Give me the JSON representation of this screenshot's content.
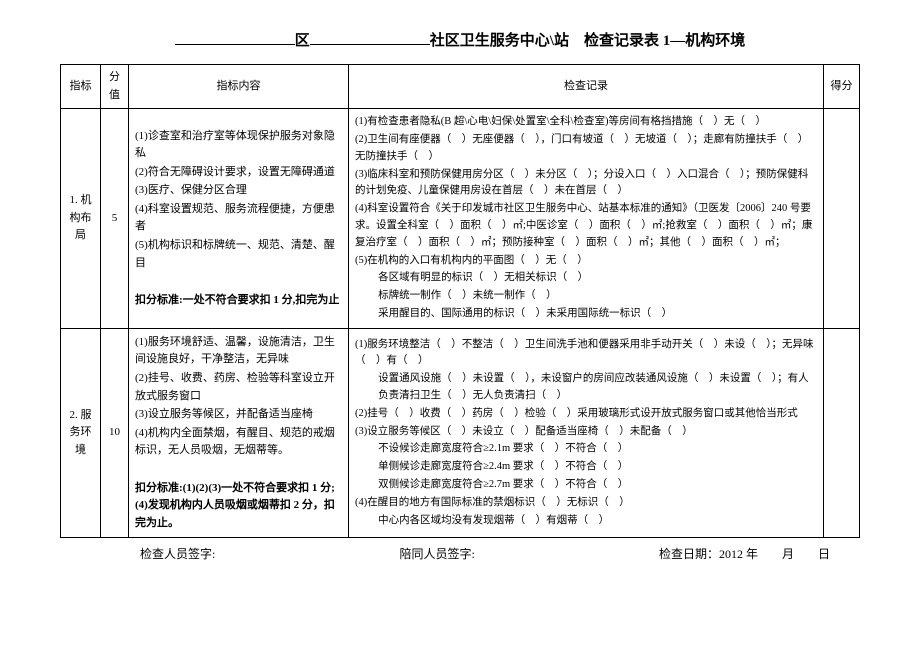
{
  "title": {
    "prefix_blank": "",
    "district_suffix": "区",
    "middle_blank": "",
    "center_text": "社区卫生服务中心\\站　检查记录表 1—机构环境"
  },
  "headers": {
    "indicator": "指标",
    "score": "分值",
    "content": "指标内容",
    "record": "检查记录",
    "got": "得分"
  },
  "rows": [
    {
      "indicator": "1. 机构布局",
      "score": "5",
      "content_lines": [
        "(1)诊查室和治疗室等体现保护服务对象隐私",
        "(2)符合无障碍设计要求，设置无障碍通道",
        "(3)医疗、保健分区合理",
        "(4)科室设置规范、服务流程便捷，方便患者",
        "(5)机构标识和标牌统一、规范、清楚、醒目"
      ],
      "content_rule": "扣分标准:一处不符合要求扣 1 分,扣完为止",
      "record_lines": [
        "(1)有检查患者隐私(B 超\\心电\\妇保\\处置室\\全科\\检查室)等房间有格挡措施（　）无（　）",
        "(2)卫生间有座便器（　）无座便器（　），门口有坡道（　）无坡道（　）；走廊有防撞扶手（　）无防撞扶手（　）",
        "(3)临床科室和预防保健用房分区（　）未分区（　）；分设入口（　）入口混合（　）；预防保健科的计划免疫、儿童保健用房设在首层（　）未在首层（　）",
        "(4)科室设置符合《关于印发城市社区卫生服务中心、站基本标准的通知》（卫医发〔2006〕240 号要求。设置全科室（　）面积（　）㎡;中医诊室（　）面积（　）㎡;抢救室（　）面积（　）㎡；康复治疗室（　）面积（　）㎡；预防接种室（　）面积（　）㎡；其他（　）面积（　）㎡；",
        "(5)在机构的入口有机构内的平面图（　）无（　）",
        "各区域有明显的标识（　）无相关标识（　）",
        "标牌统一制作（　）未统一制作（　）",
        "采用醒目的、国际通用的标识（　）未采用国际统一标识（　）"
      ]
    },
    {
      "indicator": "2. 服务环境",
      "score": "10",
      "content_lines": [
        "(1)服务环境舒适、温馨，设施清洁，卫生间设施良好，干净整洁，无异味",
        "(2)挂号、收费、药房、检验等科室设立开放式服务窗口",
        "(3)设立服务等候区，并配备适当座椅",
        "(4)机构内全面禁烟，有醒目、规范的戒烟标识，无人员吸烟，无烟蒂等。"
      ],
      "content_rule": "扣分标准:(1)(2)(3)一处不符合要求扣 1 分;  (4)发现机构内人员吸烟或烟蒂扣 2 分，扣完为止。",
      "record_lines": [
        "(1)服务环境整洁（　）不整洁（　）卫生间洗手池和便器采用非手动开关（　）未设（　）；无异味（　）有（　）",
        "设置通风设施（　）未设置（　），未设窗户的房间应改装通风设施（　）未设置（　）；有人负责清扫卫生（　）无人负责清扫（　）",
        "(2)挂号（　）收费（　）药房（　）检验（　）采用玻璃形式设开放式服务窗口或其他恰当形式",
        "(3)设立服务等候区（　）未设立（　）配备适当座椅（　）未配备（　）",
        "不设候诊走廊宽度符合≥2.1m 要求（　）不符合（　）",
        "单侧候诊走廊宽度符合≥2.4m 要求（　）不符合（　）",
        "双侧候诊走廊宽度符合≥2.7m 要求（　）不符合（　）",
        "(4)在醒目的地方有国际标准的禁烟标识（　）无标识（　）",
        "中心内各区域均没有发现烟蒂（　）有烟蒂（　）"
      ]
    }
  ],
  "footer": {
    "sign1": "检查人员签字:",
    "sign2": "陪同人员签字:",
    "date": "检查日期：2012 年　　月　　日"
  }
}
